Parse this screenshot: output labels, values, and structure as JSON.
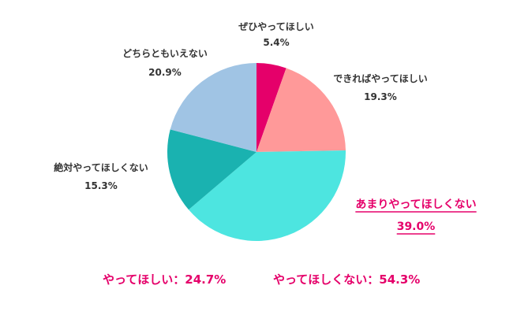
{
  "chart_data": {
    "type": "pie",
    "slices": [
      {
        "label": "ぜひやってほしい",
        "value": 5.4,
        "value_label": "5.4%",
        "color": "#e5006a"
      },
      {
        "label": "できればやってほしい",
        "value": 19.3,
        "value_label": "19.3%",
        "color": "#ff9999"
      },
      {
        "label": "あまりやってほしくない",
        "value": 39.0,
        "value_label": "39.0%",
        "color": "#4de5e0",
        "highlight": true
      },
      {
        "label": "絶対やってほしくない",
        "value": 15.3,
        "value_label": "15.3%",
        "color": "#1ab2b0"
      },
      {
        "label": "どちらともいえない",
        "value": 20.9,
        "value_label": "20.9%",
        "color": "#a0c4e4"
      }
    ],
    "summary": [
      {
        "label": "やってほしい",
        "value": "24.7%",
        "color": "#e5006a"
      },
      {
        "label": "やってほしくない",
        "value": "54.3%",
        "color": "#e5006a"
      }
    ],
    "separator": "："
  }
}
